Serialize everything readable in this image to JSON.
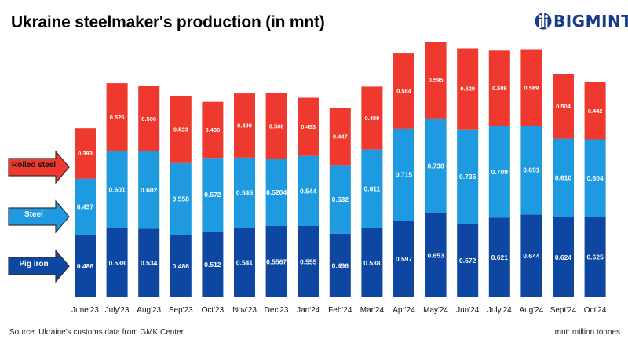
{
  "header": {
    "title": "Ukraine steelmaker's production (in mnt)",
    "logo_text": "BIGMINT"
  },
  "legend": {
    "rolled_steel": "Rolled steel",
    "steel": "Steel",
    "pig_iron": "Pig iron"
  },
  "footer": {
    "source": "Source: Ukraine's customs data from GMK Center",
    "unit_note": "mnt: million tonnes"
  },
  "colors": {
    "pig_iron": "#0d47a1",
    "steel": "#1e9be0",
    "rolled_steel": "#f0392e",
    "logo": "#1a3a8a"
  },
  "chart_data": {
    "type": "bar",
    "stacked": true,
    "title": "Ukraine steelmaker's production (in mnt)",
    "ylabel": "",
    "xlabel": "",
    "categories": [
      "June'23",
      "July'23",
      "Aug'23",
      "Sep'23",
      "Oct'23",
      "Nov'23",
      "Dec'23",
      "Jan'24",
      "Feb'24",
      "Mar'24",
      "Apr'24",
      "May'24",
      "Jun'24",
      "July'24",
      "Aug'24",
      "Sept'24",
      "Oct'24"
    ],
    "series": [
      {
        "name": "Pig iron",
        "key": "pig_iron",
        "values": [
          0.486,
          0.538,
          0.534,
          0.486,
          0.512,
          0.541,
          0.5567,
          0.555,
          0.496,
          0.538,
          0.597,
          0.653,
          0.572,
          0.621,
          0.644,
          0.624,
          0.625
        ],
        "labels": [
          "0.486",
          "0.538",
          "0.534",
          "0.486",
          "0.512",
          "0.541",
          "0.5567",
          "0.555",
          "0.496",
          "0.538",
          "0.597",
          "0.653",
          "0.572",
          "0.621",
          "0.644",
          "0.624",
          "0.625"
        ]
      },
      {
        "name": "Steel",
        "key": "steel",
        "values": [
          0.437,
          0.601,
          0.602,
          0.558,
          0.572,
          0.545,
          0.5204,
          0.544,
          0.532,
          0.611,
          0.715,
          0.738,
          0.735,
          0.709,
          0.691,
          0.61,
          0.604
        ],
        "labels": [
          "0.437",
          "0.601",
          "0.602",
          "0.558",
          "0.572",
          "0.545",
          "0.5204",
          "0.544",
          "0.532",
          "0.611",
          "0.715",
          "0.738",
          "0.735",
          "0.709",
          "0.691",
          "0.610",
          "0.604"
        ]
      },
      {
        "name": "Rolled steel",
        "key": "rolled_steel",
        "values": [
          0.393,
          0.525,
          0.506,
          0.523,
          0.436,
          0.499,
          0.508,
          0.453,
          0.447,
          0.489,
          0.584,
          0.595,
          0.629,
          0.589,
          0.589,
          0.504,
          0.442
        ],
        "labels": [
          "0.393",
          "0.525",
          "0.506",
          "0.523",
          "0.436",
          "0.499",
          "0.508",
          "0.453",
          "0.447",
          "0.489",
          "0.584",
          "0.595",
          "0.629",
          "0.589",
          "0.589",
          "0.504",
          "0.442"
        ]
      }
    ],
    "ylim": [
      0,
      2.0
    ],
    "grid": false,
    "legend_position": "left"
  }
}
